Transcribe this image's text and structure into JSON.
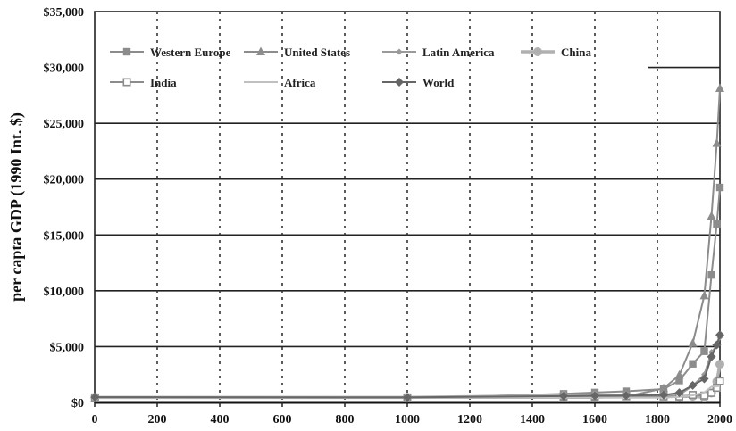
{
  "chart_data": {
    "type": "line",
    "title": "",
    "xlabel": "",
    "ylabel": "per capta GDP (1990 Int. $)",
    "xlim": [
      0,
      2000
    ],
    "ylim": [
      0,
      35000
    ],
    "x_ticks": [
      "0",
      "200",
      "400",
      "600",
      "800",
      "1000",
      "1200",
      "1400",
      "1600",
      "1800",
      "2000"
    ],
    "y_ticks": [
      "$0",
      "$5,000",
      "$10,000",
      "$15,000",
      "$20,000",
      "$25,000",
      "$30,000",
      "$35,000"
    ],
    "grid": {
      "horizontal": "solid",
      "vertical": "dotted"
    },
    "legend_position": "top-left",
    "series": [
      {
        "name": "Western Europe",
        "color": "#8c8c8c",
        "marker": "square",
        "x": [
          1,
          1000,
          1500,
          1600,
          1700,
          1820,
          1870,
          1913,
          1950,
          1973,
          1990,
          2000
        ],
        "y": [
          450,
          400,
          771,
          890,
          998,
          1202,
          1960,
          3457,
          4578,
          11416,
          15966,
          19256
        ]
      },
      {
        "name": "United States",
        "color": "#8c8c8c",
        "marker": "triangle",
        "x": [
          1,
          1000,
          1500,
          1600,
          1700,
          1820,
          1870,
          1913,
          1950,
          1973,
          1990,
          2000
        ],
        "y": [
          400,
          400,
          400,
          400,
          527,
          1257,
          2445,
          5301,
          9561,
          16689,
          23201,
          28129
        ]
      },
      {
        "name": "Latin America",
        "color": "#9a9a9a",
        "marker": "diamond-small",
        "x": [
          1,
          1000,
          1500,
          1600,
          1700,
          1820,
          1870,
          1913,
          1950,
          1973,
          1990,
          2000
        ],
        "y": [
          400,
          400,
          416,
          438,
          527,
          692,
          681,
          1481,
          2506,
          4504,
          5053,
          5838
        ]
      },
      {
        "name": "China",
        "color": "#b0b0b0",
        "marker": "circle",
        "x": [
          1,
          1000,
          1500,
          1600,
          1700,
          1820,
          1870,
          1913,
          1950,
          1973,
          1990,
          2000
        ],
        "y": [
          450,
          450,
          600,
          600,
          600,
          600,
          530,
          552,
          448,
          838,
          1871,
          3425
        ]
      },
      {
        "name": "India",
        "color": "#8c8c8c",
        "marker": "square-open",
        "x": [
          1,
          1000,
          1500,
          1600,
          1700,
          1820,
          1870,
          1913,
          1950,
          1973,
          1990,
          2000
        ],
        "y": [
          450,
          450,
          550,
          550,
          550,
          533,
          533,
          673,
          619,
          853,
          1309,
          1910
        ]
      },
      {
        "name": "Africa",
        "color": "#c0c0c0",
        "marker": "none",
        "x": [
          1,
          1000,
          1500,
          1600,
          1700,
          1820,
          1870,
          1913,
          1950,
          1973,
          1990,
          2000
        ],
        "y": [
          430,
          425,
          414,
          422,
          421,
          420,
          500,
          637,
          894,
          1410,
          1444,
          1464
        ]
      },
      {
        "name": "World",
        "color": "#666666",
        "marker": "diamond",
        "x": [
          1,
          1000,
          1500,
          1600,
          1700,
          1820,
          1870,
          1913,
          1950,
          1973,
          1990,
          2000
        ],
        "y": [
          467,
          450,
          566,
          596,
          616,
          667,
          873,
          1526,
          2113,
          4091,
          5157,
          6049
        ]
      }
    ]
  }
}
